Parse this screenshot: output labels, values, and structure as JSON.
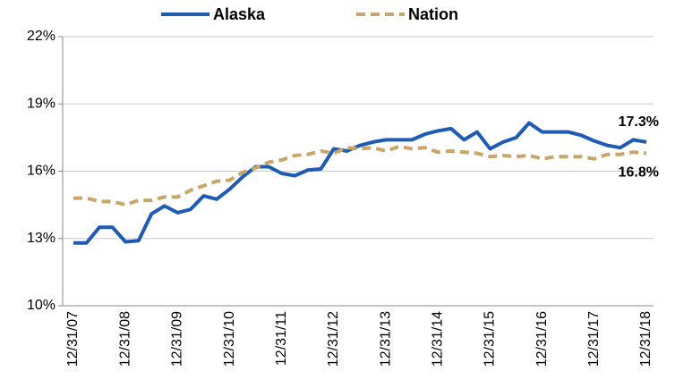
{
  "chart_data": {
    "type": "line",
    "categories": [
      "12/31/07",
      null,
      null,
      null,
      "12/31/08",
      null,
      null,
      null,
      "12/31/09",
      null,
      null,
      null,
      "12/31/10",
      null,
      null,
      null,
      "12/31/11",
      null,
      null,
      null,
      "12/31/12",
      null,
      null,
      null,
      "12/31/13",
      null,
      null,
      null,
      "12/31/14",
      null,
      null,
      null,
      "12/31/15",
      null,
      null,
      null,
      "12/31/16",
      null,
      null,
      null,
      "12/31/17",
      null,
      null,
      null,
      "12/31/18"
    ],
    "series": [
      {
        "name": "Alaska",
        "color": "#1f5bb5",
        "dashed": false,
        "values": [
          12.8,
          12.8,
          13.5,
          13.5,
          12.85,
          12.9,
          14.1,
          14.45,
          14.15,
          14.3,
          14.9,
          14.75,
          15.2,
          15.75,
          16.2,
          16.2,
          15.9,
          15.8,
          16.05,
          16.1,
          17.0,
          16.9,
          17.15,
          17.3,
          17.4,
          17.4,
          17.4,
          17.65,
          17.8,
          17.9,
          17.4,
          17.75,
          17.0,
          17.3,
          17.5,
          18.15,
          17.75,
          17.75,
          17.75,
          17.6,
          17.35,
          17.15,
          17.05,
          17.4,
          17.3
        ],
        "value_labels": [
          null,
          null,
          null,
          null,
          null,
          null,
          null,
          null,
          null,
          null,
          null,
          null,
          null,
          null,
          null,
          null,
          null,
          null,
          null,
          null,
          null,
          null,
          null,
          null,
          null,
          null,
          null,
          null,
          null,
          null,
          null,
          null,
          null,
          null,
          null,
          null,
          null,
          null,
          null,
          null,
          null,
          null,
          null,
          null,
          "17.3%"
        ]
      },
      {
        "name": "Nation",
        "color": "#c9a56a",
        "dashed": true,
        "values": [
          14.8,
          14.8,
          14.65,
          14.65,
          14.5,
          14.7,
          14.7,
          14.85,
          14.85,
          15.15,
          15.35,
          15.55,
          15.6,
          15.95,
          16.15,
          16.4,
          16.5,
          16.7,
          16.75,
          16.9,
          16.8,
          17.05,
          17.0,
          17.05,
          16.9,
          17.1,
          17.0,
          17.05,
          16.85,
          16.9,
          16.85,
          16.8,
          16.65,
          16.7,
          16.65,
          16.7,
          16.55,
          16.65,
          16.65,
          16.65,
          16.55,
          16.75,
          16.75,
          16.85,
          16.8
        ],
        "value_labels": [
          null,
          null,
          null,
          null,
          null,
          null,
          null,
          null,
          null,
          null,
          null,
          null,
          null,
          null,
          null,
          null,
          null,
          null,
          null,
          null,
          null,
          null,
          null,
          null,
          null,
          null,
          null,
          null,
          null,
          null,
          null,
          null,
          null,
          null,
          null,
          null,
          null,
          null,
          null,
          null,
          null,
          null,
          null,
          null,
          "16.8%"
        ]
      }
    ],
    "ylim": [
      10,
      22
    ],
    "yticks": [
      {
        "value": 10,
        "label": "10%"
      },
      {
        "value": 13,
        "label": "13%"
      },
      {
        "value": 16,
        "label": "16%"
      },
      {
        "value": 19,
        "label": "19%"
      },
      {
        "value": 22,
        "label": "22%"
      }
    ],
    "grid": true,
    "legend": "top"
  }
}
